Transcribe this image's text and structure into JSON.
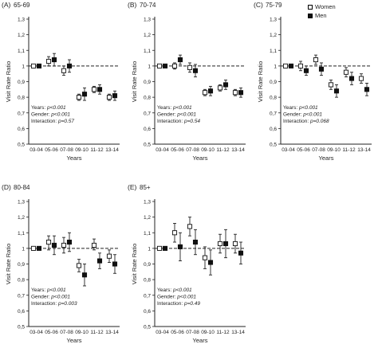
{
  "legend": {
    "women": "Women",
    "men": "Men"
  },
  "chart_data": [
    {
      "type": "scatter",
      "panel_label": "(A)",
      "title": "65-69",
      "xlabel": "Years",
      "ylabel": "Visit Rate Ratio",
      "categories": [
        "03-04",
        "05-06",
        "07-08",
        "09-10",
        "11-12",
        "13-14"
      ],
      "ylim": [
        0.5,
        1.3
      ],
      "yticks": [
        0.5,
        0.6,
        0.7,
        0.8,
        0.9,
        1,
        1.1,
        1.2,
        1.3
      ],
      "ytick_labels": [
        "0,5",
        "0,6",
        "0,7",
        "0,8",
        "0,9",
        "1",
        "1,1",
        "1,2",
        "1,3"
      ],
      "reference_line": 1,
      "series": [
        {
          "name": "Women",
          "marker": "open",
          "values": [
            1.0,
            1.03,
            0.97,
            0.8,
            0.85,
            0.8
          ],
          "lower": [
            1.0,
            1.0,
            0.94,
            0.78,
            0.83,
            0.78
          ],
          "upper": [
            1.0,
            1.06,
            1.0,
            0.82,
            0.87,
            0.82
          ]
        },
        {
          "name": "Men",
          "marker": "filled",
          "values": [
            1.0,
            1.04,
            1.0,
            0.82,
            0.85,
            0.81
          ],
          "lower": [
            1.0,
            1.0,
            0.96,
            0.78,
            0.82,
            0.78
          ],
          "upper": [
            1.0,
            1.08,
            1.04,
            0.86,
            0.88,
            0.84
          ]
        }
      ],
      "annotations": [
        {
          "label": "Years: ",
          "value": "p<0.001"
        },
        {
          "label": "Gender: ",
          "value": "p<0.001"
        },
        {
          "label": "Interaction: ",
          "value": "p=0.57"
        }
      ]
    },
    {
      "type": "scatter",
      "panel_label": "(B)",
      "title": "70-74",
      "xlabel": "Years",
      "ylabel": "Visit Rate Ratio",
      "categories": [
        "03-04",
        "05-06",
        "07-08",
        "09-10",
        "11-12",
        "13-14"
      ],
      "ylim": [
        0.5,
        1.3
      ],
      "yticks": [
        0.5,
        0.6,
        0.7,
        0.8,
        0.9,
        1,
        1.1,
        1.2,
        1.3
      ],
      "ytick_labels": [
        "0,5",
        "0,6",
        "0,7",
        "0,8",
        "0,9",
        "1",
        "1,1",
        "1,2",
        "1,3"
      ],
      "reference_line": 1,
      "series": [
        {
          "name": "Women",
          "marker": "open",
          "values": [
            1.0,
            1.0,
            0.99,
            0.83,
            0.86,
            0.83
          ],
          "lower": [
            1.0,
            0.98,
            0.96,
            0.81,
            0.84,
            0.81
          ],
          "upper": [
            1.0,
            1.02,
            1.02,
            0.85,
            0.88,
            0.85
          ]
        },
        {
          "name": "Men",
          "marker": "filled",
          "values": [
            1.0,
            1.04,
            0.97,
            0.84,
            0.88,
            0.83
          ],
          "lower": [
            1.0,
            1.01,
            0.93,
            0.81,
            0.85,
            0.8
          ],
          "upper": [
            1.0,
            1.07,
            1.01,
            0.87,
            0.91,
            0.86
          ]
        }
      ],
      "annotations": [
        {
          "label": "Years: ",
          "value": "p<0.001"
        },
        {
          "label": "Gender: ",
          "value": "p<0.001"
        },
        {
          "label": "Interaction: ",
          "value": "p=0.54"
        }
      ]
    },
    {
      "type": "scatter",
      "panel_label": "(C)",
      "title": "75-79",
      "xlabel": "Years",
      "ylabel": "Visit Rate Ratio",
      "categories": [
        "03-04",
        "05-06",
        "07-08",
        "09-10",
        "11-12",
        "13-14"
      ],
      "ylim": [
        0.5,
        1.3
      ],
      "yticks": [
        0.5,
        0.6,
        0.7,
        0.8,
        0.9,
        1,
        1.1,
        1.2,
        1.3
      ],
      "ytick_labels": [
        "0,5",
        "0,6",
        "0,7",
        "0,8",
        "0,9",
        "1",
        "1,1",
        "1,2",
        "1,3"
      ],
      "reference_line": 1,
      "series": [
        {
          "name": "Women",
          "marker": "open",
          "values": [
            1.0,
            1.0,
            1.04,
            0.88,
            0.96,
            0.92
          ],
          "lower": [
            1.0,
            0.97,
            1.01,
            0.85,
            0.93,
            0.89
          ],
          "upper": [
            1.0,
            1.03,
            1.07,
            0.91,
            0.99,
            0.95
          ]
        },
        {
          "name": "Men",
          "marker": "filled",
          "values": [
            1.0,
            0.97,
            0.98,
            0.84,
            0.92,
            0.85
          ],
          "lower": [
            1.0,
            0.94,
            0.94,
            0.8,
            0.88,
            0.81
          ],
          "upper": [
            1.0,
            1.0,
            1.02,
            0.88,
            0.96,
            0.89
          ]
        }
      ],
      "annotations": [
        {
          "label": "Years: ",
          "value": "p<0.001"
        },
        {
          "label": "Gender: ",
          "value": "p<0.001"
        },
        {
          "label": "Interaction: ",
          "value": "p=0.068"
        }
      ]
    },
    {
      "type": "scatter",
      "panel_label": "(D)",
      "title": "80-84",
      "xlabel": "Years",
      "ylabel": "Visit Rate Ratio",
      "categories": [
        "03-04",
        "05-06",
        "07-08",
        "09-10",
        "11-12",
        "13-14"
      ],
      "ylim": [
        0.5,
        1.3
      ],
      "yticks": [
        0.5,
        0.6,
        0.7,
        0.8,
        0.9,
        1,
        1.1,
        1.2,
        1.3
      ],
      "ytick_labels": [
        "0,5",
        "0,6",
        "0,7",
        "0,8",
        "0,9",
        "1",
        "1,1",
        "1,2",
        "1,3"
      ],
      "reference_line": 1,
      "series": [
        {
          "name": "Women",
          "marker": "open",
          "values": [
            1.0,
            1.04,
            1.02,
            0.89,
            1.02,
            0.95
          ],
          "lower": [
            1.0,
            0.99,
            0.97,
            0.85,
            0.99,
            0.91
          ],
          "upper": [
            1.0,
            1.08,
            1.07,
            0.93,
            1.06,
            0.99
          ]
        },
        {
          "name": "Men",
          "marker": "filled",
          "values": [
            1.0,
            1.02,
            1.04,
            0.83,
            0.92,
            0.9
          ],
          "lower": [
            1.0,
            0.96,
            0.98,
            0.76,
            0.87,
            0.84
          ],
          "upper": [
            1.0,
            1.08,
            1.1,
            0.9,
            0.97,
            0.96
          ]
        }
      ],
      "annotations": [
        {
          "label": "Years: ",
          "value": "p<0.001"
        },
        {
          "label": "Gender: ",
          "value": "p<0.001"
        },
        {
          "label": "Interaction: ",
          "value": "p=0.003"
        }
      ]
    },
    {
      "type": "scatter",
      "panel_label": "(E)",
      "title": "85+",
      "xlabel": "Years",
      "ylabel": "Visit Rate Ratio",
      "categories": [
        "03-04",
        "05-06",
        "07-08",
        "09-10",
        "11-12",
        "13-14"
      ],
      "ylim": [
        0.5,
        1.3
      ],
      "yticks": [
        0.5,
        0.6,
        0.7,
        0.8,
        0.9,
        1,
        1.1,
        1.2,
        1.3
      ],
      "ytick_labels": [
        "0,5",
        "0,6",
        "0,7",
        "0,8",
        "0,9",
        "1",
        "1,1",
        "1,2",
        "1,3"
      ],
      "reference_line": 1,
      "series": [
        {
          "name": "Women",
          "marker": "open",
          "values": [
            1.0,
            1.1,
            1.14,
            0.94,
            1.03,
            1.03
          ],
          "lower": [
            1.0,
            1.04,
            1.08,
            0.87,
            0.97,
            0.97
          ],
          "upper": [
            1.0,
            1.16,
            1.2,
            1.01,
            1.09,
            1.09
          ]
        },
        {
          "name": "Men",
          "marker": "filled",
          "values": [
            1.0,
            1.01,
            1.04,
            0.91,
            1.03,
            0.97
          ],
          "lower": [
            1.0,
            0.92,
            0.96,
            0.83,
            0.94,
            0.9
          ],
          "upper": [
            1.0,
            1.1,
            1.12,
            0.99,
            1.12,
            1.04
          ]
        }
      ],
      "annotations": [
        {
          "label": "Years: ",
          "value": "p<0.001"
        },
        {
          "label": "Gender: ",
          "value": "p<0.001"
        },
        {
          "label": "Interaction: ",
          "value": "p=0.49"
        }
      ]
    }
  ]
}
